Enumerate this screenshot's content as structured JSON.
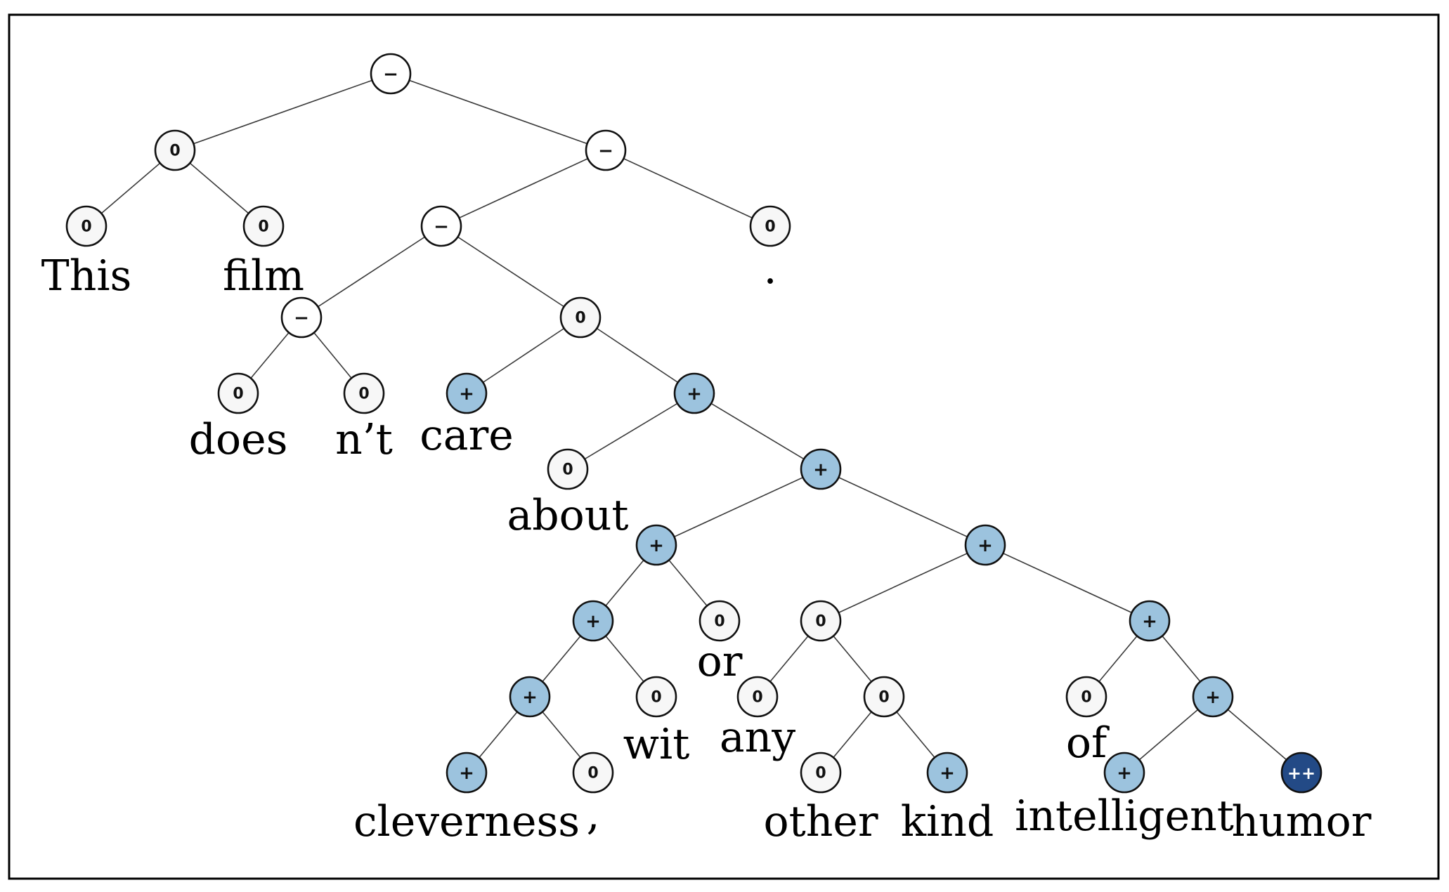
{
  "sentiment_colors": {
    "--": "#1f4e8c",
    "-": "#e8a584",
    "0": "#f7f7f7",
    "+": "#9cc3de",
    "++": "#234a86"
  },
  "label_colors": {
    "-": "#111111",
    "0": "#111111",
    "+": "#111111",
    "++": "#ffffff"
  },
  "tree": {
    "label": "−",
    "children": [
      {
        "label": "0",
        "children": [
          {
            "label": "0",
            "word": "This"
          },
          {
            "label": "0",
            "word": "film"
          }
        ]
      },
      {
        "label": "−",
        "children": [
          {
            "label": "−",
            "children": [
              {
                "label": "−",
                "children": [
                  {
                    "label": "0",
                    "word": "does"
                  },
                  {
                    "label": "0",
                    "word": "n’t"
                  }
                ]
              },
              {
                "label": "0",
                "children": [
                  {
                    "label": "+",
                    "word": "care"
                  },
                  {
                    "label": "+",
                    "children": [
                      {
                        "label": "0",
                        "word": "about"
                      },
                      {
                        "label": "+",
                        "children": [
                          {
                            "label": "+",
                            "children": [
                              {
                                "label": "+",
                                "children": [
                                  {
                                    "label": "+",
                                    "children": [
                                      {
                                        "label": "+",
                                        "word": "cleverness"
                                      },
                                      {
                                        "label": "0",
                                        "word": ","
                                      }
                                    ]
                                  },
                                  {
                                    "label": "0",
                                    "word": "wit"
                                  }
                                ]
                              },
                              {
                                "label": "0",
                                "word": "or"
                              }
                            ]
                          },
                          {
                            "label": "+",
                            "children": [
                              {
                                "label": "0",
                                "children": [
                                  {
                                    "label": "0",
                                    "word": "any"
                                  },
                                  {
                                    "label": "0",
                                    "children": [
                                      {
                                        "label": "0",
                                        "word": "other"
                                      },
                                      {
                                        "label": "+",
                                        "word": "kind"
                                      }
                                    ]
                                  }
                                ]
                              },
                              {
                                "label": "+",
                                "children": [
                                  {
                                    "label": "0",
                                    "word": "of"
                                  },
                                  {
                                    "label": "+",
                                    "children": [
                                      {
                                        "label": "+",
                                        "word": "intelligent"
                                      },
                                      {
                                        "label": "++",
                                        "word": "humor"
                                      }
                                    ]
                                  }
                                ]
                              }
                            ]
                          }
                        ]
                      }
                    ]
                  }
                ]
              }
            ]
          },
          {
            "label": "0",
            "word": "."
          }
        ]
      }
    ]
  }
}
